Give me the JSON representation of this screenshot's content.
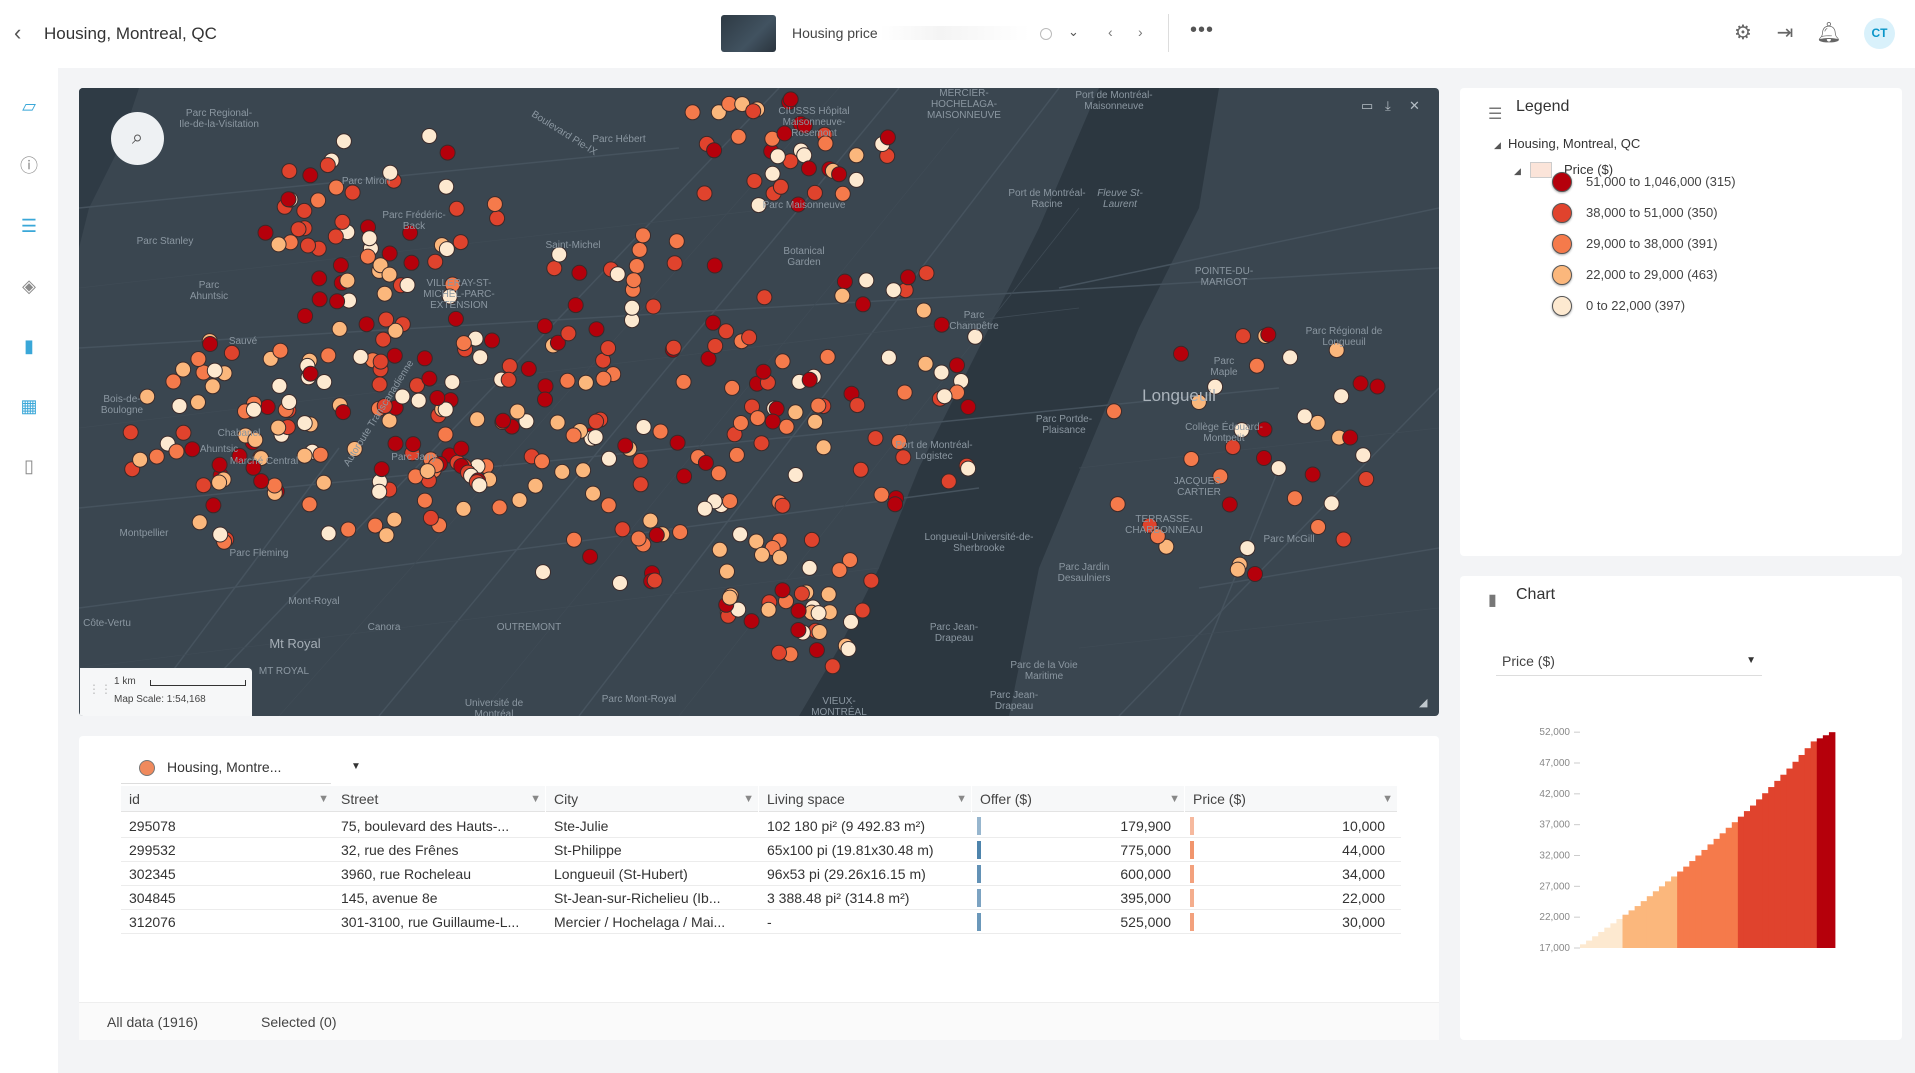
{
  "header": {
    "back_icon": "chevron-left-icon",
    "title": "Housing, Montreal, QC",
    "map_name": "Housing price",
    "more_icon": "ellipsis-icon",
    "icons": [
      "gear-icon",
      "logout-icon",
      "bell-icon"
    ],
    "avatar_initials": "CT"
  },
  "rail": {
    "icons": [
      "map-icon",
      "info-icon",
      "list-icon",
      "layers-icon",
      "bar-chart-icon",
      "table-icon",
      "book-icon"
    ]
  },
  "map": {
    "labels": [
      "Parc Regional-Ile-de-la-Visitation",
      "CIUSSS Hôpital Maisonneuve-Rosemont",
      "MERCIER-HOCHELAGA-MAISONNEUVE",
      "Port de Montréal-Maisonneuve",
      "Parc Hébert",
      "Parc Miron",
      "Parc Frédéric-Back",
      "Parc Stanley",
      "Parc Ahuntsic",
      "VILLERAY-ST-MICHEL-PARC-EXTENSION",
      "Saint-Michel",
      "Parc Maisonneuve",
      "Botanical Garden",
      "Port de Montréal-Racine",
      "Fleuve St-Laurent",
      "POINTE-DU-MARIGOT",
      "Parc Régional de Longueuil",
      "Parc Champêtre",
      "Parc Maple",
      "Bois-de-Boulogne",
      "Sauvé",
      "Chabanel",
      "Ahuntsic",
      "Marché Central",
      "Parc Jarry",
      "Port de Montréal-Logistec",
      "Longueuil",
      "Collège Édouard-Montpetit",
      "JACQUES-CARTIER",
      "TERRASSE-CHARBONNEAU",
      "Parc Portde-Plaisance",
      "Longueuil-Université-de-Sherbrooke",
      "Parc McGill",
      "Parc Jardin Desaulniers",
      "Montpellier",
      "Parc Fleming",
      "Mont-Royal",
      "Canora",
      "Mt Royal",
      "Côte-Vertu",
      "OUTREMONT",
      "MT ROYAL",
      "Université de Montréal",
      "Parc Mont-Royal",
      "VIEUX-MONTRÉAL",
      "Parc Jean-Drapeau",
      "Parc de la Voie Maritime",
      "Parc Jean-Drapeau",
      "Boulevard Pie-IX",
      "Autoroute Transcanadienne"
    ],
    "search_icon": "search-icon",
    "corner_icons": [
      "minimize-icon",
      "download-icon",
      "close-icon"
    ],
    "tools": [
      "fullscreen-icon",
      "zoom-in-icon",
      "zoom-out-icon",
      "pan-hand-icon",
      "select-icon",
      "no-draw-icon",
      "ruler-icon",
      "camera-icon"
    ],
    "scale_km": "1 km",
    "scale_text": "Map Scale: 1:54,168"
  },
  "legend": {
    "title": "Legend",
    "layer": "Housing, Montreal, QC",
    "field": "Price ($)",
    "classes": [
      {
        "label": "51,000 to 1,046,000 (315)",
        "color": "#b5000b"
      },
      {
        "label": "38,000 to 51,000 (350)",
        "color": "#e0432d"
      },
      {
        "label": "29,000 to 38,000 (391)",
        "color": "#f57a4b"
      },
      {
        "label": "22,000 to 29,000 (463)",
        "color": "#fbb77c"
      },
      {
        "label": "0 to 22,000 (397)",
        "color": "#fde9d0"
      }
    ]
  },
  "chart": {
    "title": "Chart",
    "select_value": "Price ($)"
  },
  "chart_data": {
    "type": "bar",
    "title": "",
    "ylabel": "",
    "ylim": [
      17000,
      53000
    ],
    "yticks": [
      "52,000",
      "47,000",
      "42,000",
      "37,000",
      "32,000",
      "27,000",
      "22,000",
      "17,000"
    ],
    "ytick_values": [
      52000,
      47000,
      42000,
      37000,
      32000,
      27000,
      22000,
      17000
    ],
    "values": [
      17600,
      18200,
      18900,
      19600,
      20300,
      21000,
      21700,
      22400,
      23100,
      23800,
      24600,
      25400,
      26200,
      27000,
      27800,
      28600,
      29400,
      30200,
      31100,
      32000,
      32900,
      33800,
      34700,
      35600,
      36500,
      37400,
      38300,
      39200,
      40100,
      41100,
      42100,
      43100,
      44100,
      45100,
      46100,
      47200,
      48300,
      49400,
      50500,
      51000,
      51500,
      52000
    ],
    "class_breaks": [
      22000,
      29000,
      38000,
      51000
    ],
    "colors": [
      "#fde9d0",
      "#fbb77c",
      "#f57a4b",
      "#e0432d",
      "#b5000b"
    ]
  },
  "table": {
    "layer_name": "Housing, Montre...",
    "columns": [
      "id",
      "Street",
      "City",
      "Living space",
      "Offer ($)",
      "Price ($)"
    ],
    "rows": [
      {
        "id": "295078",
        "street": "75, boulevard des Hauts-...",
        "city": "Ste-Julie",
        "living": "102 180 pi² (9 492.83 m²)",
        "offer": "179,900",
        "offer_frac": 0.17,
        "price": "10,000",
        "price_frac": 0.01
      },
      {
        "id": "299532",
        "street": "32, rue des Frênes",
        "city": "St-Philippe",
        "living": "65x100 pi (19.81x30.48 m)",
        "offer": "775,000",
        "offer_frac": 0.75,
        "price": "44,000",
        "price_frac": 0.04
      },
      {
        "id": "302345",
        "street": "3960, rue Rocheleau",
        "city": "Longueuil (St-Hubert)",
        "living": "96x53 pi (29.26x16.15 m)",
        "offer": "600,000",
        "offer_frac": 0.58,
        "price": "34,000",
        "price_frac": 0.03
      },
      {
        "id": "304845",
        "street": "145, avenue 8e",
        "city": "St-Jean-sur-Richelieu (Ib...",
        "living": "3 388.48 pi² (314.8 m²)",
        "offer": "395,000",
        "offer_frac": 0.38,
        "price": "22,000",
        "price_frac": 0.02
      },
      {
        "id": "312076",
        "street": "301-3100, rue Guillaume-L...",
        "city": "Mercier / Hochelaga / Mai...",
        "living": "-",
        "offer": "525,000",
        "offer_frac": 0.51,
        "price": "30,000",
        "price_frac": 0.03
      }
    ],
    "footer": {
      "all": "All data (1916)",
      "selected": "Selected (0)"
    }
  }
}
